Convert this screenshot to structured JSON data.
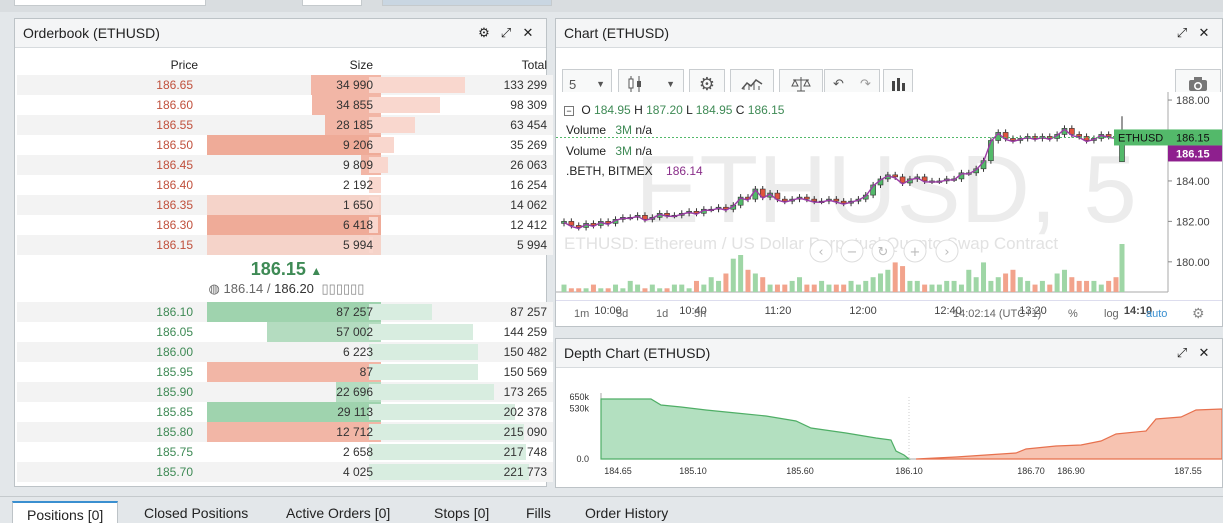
{
  "orderbook": {
    "title": "Orderbook (ETHUSD)",
    "headers": {
      "price": "Price",
      "size": "Size",
      "total": "Total"
    },
    "asks": [
      {
        "price": "186.65",
        "size": "34 990",
        "total": "133 299"
      },
      {
        "price": "186.60",
        "size": "34 855",
        "total": "98 309"
      },
      {
        "price": "186.55",
        "size": "28 185",
        "total": "63 454"
      },
      {
        "price": "186.50",
        "size": "9 206",
        "total": "35 269"
      },
      {
        "price": "186.45",
        "size": "9 809",
        "total": "26 063"
      },
      {
        "price": "186.40",
        "size": "2 192",
        "total": "16 254"
      },
      {
        "price": "186.35",
        "size": "1 650",
        "total": "14 062"
      },
      {
        "price": "186.30",
        "size": "6 418",
        "total": "12 412"
      },
      {
        "price": "186.15",
        "size": "5 994",
        "total": "5 994"
      }
    ],
    "last_price": "186.15",
    "arrow": "▲",
    "index_price": "186.14",
    "mark_price": "186.20",
    "separator": "/",
    "extra": "▯▯▯▯▯▯",
    "bids": [
      {
        "price": "186.10",
        "size": "87 257",
        "total": "87 257"
      },
      {
        "price": "186.05",
        "size": "57 002",
        "total": "144 259"
      },
      {
        "price": "186.00",
        "size": "6 223",
        "total": "150 482"
      },
      {
        "price": "185.95",
        "size": "87",
        "total": "150 569"
      },
      {
        "price": "185.90",
        "size": "22 696",
        "total": "173 265"
      },
      {
        "price": "185.85",
        "size": "29 113",
        "total": "202 378"
      },
      {
        "price": "185.80",
        "size": "12 712",
        "total": "215 090"
      },
      {
        "price": "185.75",
        "size": "2 658",
        "total": "217 748"
      },
      {
        "price": "185.70",
        "size": "4 025",
        "total": "221 773"
      }
    ]
  },
  "chart": {
    "title": "Chart (ETHUSD)",
    "interval": "5",
    "watermark": "ETHUSD, 5",
    "subtitle_watermark": "ETHUSD: Ethereum / US Dollar Perpetual Quanto Swap Contract",
    "ohlc": {
      "o_label": "O",
      "o": "184.95",
      "h_label": "H",
      "h": "187.20",
      "l_label": "L",
      "l": "184.95",
      "c_label": "C",
      "c": "186.15"
    },
    "volume1": {
      "label": "Volume",
      "val": "3M",
      "na": "n/a"
    },
    "volume2": {
      "label": "Volume",
      "val": "3M",
      "na": "n/a"
    },
    "beth": {
      "label": ".BETH, BITMEX",
      "val": "186.14"
    },
    "price_ticks": [
      "188.00",
      "186.00",
      "184.00",
      "182.00",
      "180.00"
    ],
    "price_tags": [
      {
        "label": "ETHUSD",
        "value": "186.15"
      },
      {
        "value": "186.15"
      }
    ],
    "time_ticks": [
      "10:00",
      "10:40",
      "11:20",
      "12:00",
      "12:40",
      "13:20",
      "14:10"
    ],
    "ranges": [
      "1m",
      "5d",
      "1d",
      "5h"
    ],
    "timestamp": "14:02:14 (UTC+1)",
    "footer_right": [
      "%",
      "log",
      "auto"
    ]
  },
  "depth": {
    "title": "Depth Chart (ETHUSD)",
    "y_ticks": [
      "650k",
      "530k",
      "0.0"
    ],
    "x_ticks": [
      "184.65",
      "185.10",
      "185.60",
      "186.10",
      "186.70",
      "186.90",
      "187.55"
    ]
  },
  "tabs": [
    {
      "label": "Positions [0]",
      "active": true
    },
    {
      "label": "Closed Positions",
      "active": false
    },
    {
      "label": "Active Orders [0]",
      "active": false
    },
    {
      "label": "Stops [0]",
      "active": false
    },
    {
      "label": "Fills",
      "active": false
    },
    {
      "label": "Order History",
      "active": false
    }
  ],
  "colors": {
    "ask": "#c0503c",
    "bid": "#3e8a55",
    "ask_bar": "#f2b6a6",
    "bid_bar": "#b4dcc0",
    "accent": "#3a8fd0"
  }
}
